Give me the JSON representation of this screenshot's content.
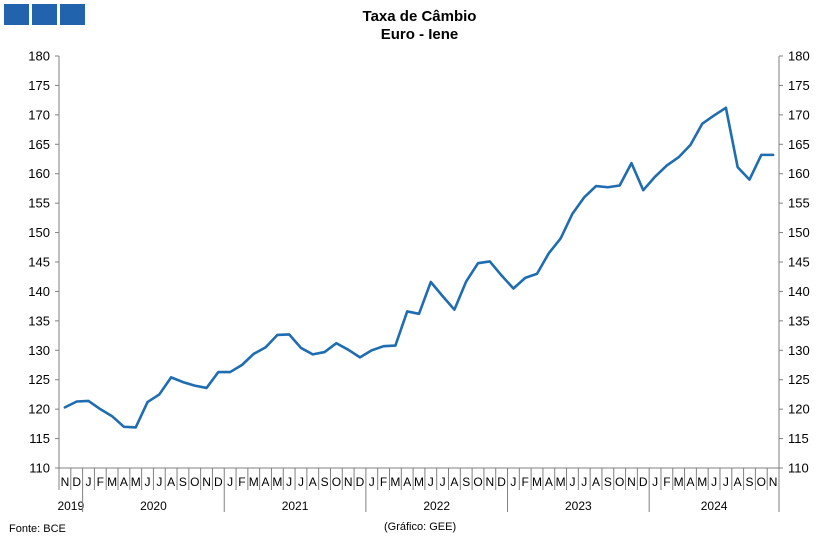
{
  "header": {
    "title_line1": "Taxa de Câmbio",
    "title_line2": "Euro - Iene"
  },
  "footer": {
    "source": "Fonte: BCE",
    "credit": "(Gráfico: GEE)"
  },
  "colors": {
    "logo": "#2163ad",
    "series": "#1f6db0",
    "axis": "#808080"
  },
  "chart_data": {
    "type": "line",
    "title": "Taxa de Câmbio Euro - Iene",
    "ylim": [
      110,
      180
    ],
    "yticks": [
      110,
      115,
      120,
      125,
      130,
      135,
      140,
      145,
      150,
      155,
      160,
      165,
      170,
      175,
      180
    ],
    "grid": false,
    "x_month_labels": [
      "N",
      "D",
      "J",
      "F",
      "M",
      "A",
      "M",
      "J",
      "J",
      "A",
      "S",
      "O",
      "N",
      "D",
      "J",
      "F",
      "M",
      "A",
      "M",
      "J",
      "J",
      "A",
      "S",
      "O",
      "N",
      "D",
      "J",
      "F",
      "M",
      "A",
      "M",
      "J",
      "J",
      "A",
      "S",
      "O",
      "N",
      "D",
      "J",
      "F",
      "M",
      "A",
      "M",
      "J",
      "J",
      "A",
      "S",
      "O",
      "N",
      "D",
      "J",
      "F",
      "M",
      "A",
      "M",
      "J",
      "J",
      "A",
      "S",
      "O",
      "N"
    ],
    "year_groups": [
      {
        "label": "2019",
        "start": 0,
        "count": 2
      },
      {
        "label": "2020",
        "start": 2,
        "count": 12
      },
      {
        "label": "2021",
        "start": 14,
        "count": 12
      },
      {
        "label": "2022",
        "start": 26,
        "count": 12
      },
      {
        "label": "2023",
        "start": 38,
        "count": 12
      },
      {
        "label": "2024",
        "start": 50,
        "count": 11
      }
    ],
    "series": [
      {
        "values": [
          120.3,
          121.3,
          121.4,
          120.0,
          118.8,
          117.0,
          116.9,
          121.2,
          122.5,
          125.4,
          124.6,
          124.0,
          123.6,
          126.3,
          126.3,
          127.5,
          129.4,
          130.5,
          132.6,
          132.7,
          130.4,
          129.3,
          129.7,
          131.2,
          130.1,
          128.8,
          130.0,
          130.7,
          130.8,
          136.6,
          136.2,
          141.6,
          139.2,
          136.9,
          141.7,
          144.8,
          145.1,
          142.7,
          140.5,
          142.3,
          143.0,
          146.5,
          149.0,
          153.2,
          156.0,
          157.9,
          157.7,
          158.0,
          161.8,
          157.2,
          159.5,
          161.4,
          162.8,
          164.9,
          168.5,
          169.9,
          171.2,
          161.1,
          159.0,
          163.2,
          163.2
        ]
      }
    ]
  }
}
